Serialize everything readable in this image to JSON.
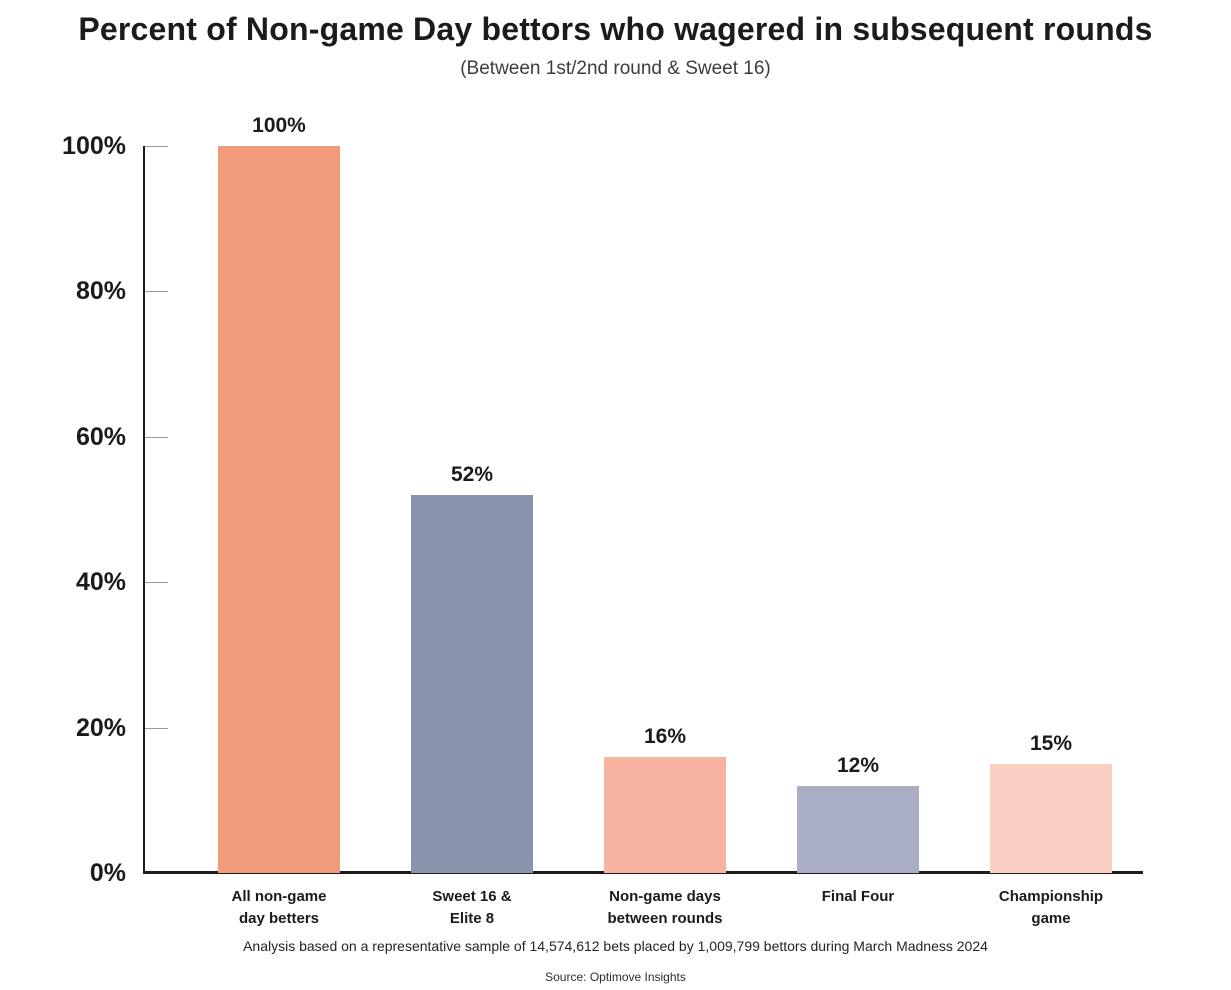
{
  "chart_data": {
    "type": "bar",
    "title": "Percent of Non-game Day bettors who wagered in subsequent rounds",
    "subtitle": "(Between 1st/2nd round & Sweet 16)",
    "categories": [
      "All non-game\nday betters",
      "Sweet 16 &\nElite 8",
      "Non-game days\nbetween rounds",
      "Final Four",
      "Championship\ngame"
    ],
    "values": [
      100,
      52,
      16,
      12,
      15
    ],
    "value_labels": [
      "100%",
      "52%",
      "16%",
      "12%",
      "15%"
    ],
    "bar_colors": [
      "#F29B7C",
      "#8A94AD",
      "#F7B2A0",
      "#AAAFC6",
      "#FBCFC1"
    ],
    "xlabel": "",
    "ylabel": "",
    "ylim": [
      0,
      100
    ],
    "yticks": [
      "0%",
      "20%",
      "40%",
      "60%",
      "80%",
      "100%"
    ],
    "grid": false,
    "legend": null,
    "axis_color": "#1d1d1d",
    "tick_color": "#9a9a9a",
    "text_color": "#1b1b1b",
    "background_color": "#ffffff"
  },
  "footer": {
    "analysis_note": "Analysis based on a representative sample of 14,574,612 bets placed by 1,009,799 bettors during March Madness 2024",
    "source": "Source: Optimove Insights"
  }
}
